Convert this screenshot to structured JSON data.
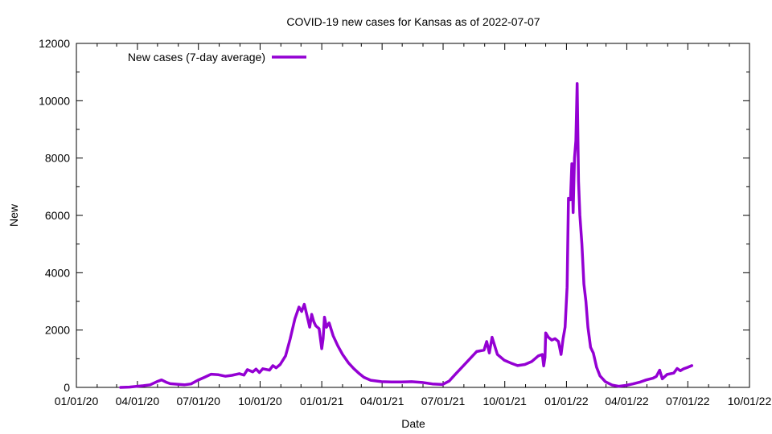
{
  "chart_data": {
    "type": "line",
    "title": "COVID-19 new cases for Kansas as of 2022-07-07",
    "xlabel": "Date",
    "ylabel": "New",
    "x_ticks": [
      "01/01/20",
      "04/01/20",
      "07/01/20",
      "10/01/20",
      "01/01/21",
      "04/01/21",
      "07/01/21",
      "10/01/21",
      "01/01/22",
      "04/01/22",
      "07/01/22",
      "10/01/22"
    ],
    "y_ticks": [
      "0",
      "2000",
      "4000",
      "6000",
      "8000",
      "10000",
      "12000"
    ],
    "ylim": [
      0,
      12000
    ],
    "xlim": [
      "2020-01-01",
      "2022-10-01"
    ],
    "grid": false,
    "legend_position": "top-left",
    "series": [
      {
        "name": "New cases (7-day average)",
        "color": "#9400d3",
        "points": [
          [
            "2020-03-07",
            0
          ],
          [
            "2020-03-20",
            10
          ],
          [
            "2020-04-01",
            40
          ],
          [
            "2020-04-10",
            60
          ],
          [
            "2020-04-20",
            90
          ],
          [
            "2020-04-30",
            200
          ],
          [
            "2020-05-07",
            260
          ],
          [
            "2020-05-14",
            180
          ],
          [
            "2020-05-20",
            130
          ],
          [
            "2020-05-31",
            110
          ],
          [
            "2020-06-10",
            90
          ],
          [
            "2020-06-20",
            120
          ],
          [
            "2020-06-30",
            250
          ],
          [
            "2020-07-10",
            350
          ],
          [
            "2020-07-20",
            460
          ],
          [
            "2020-07-31",
            440
          ],
          [
            "2020-08-10",
            390
          ],
          [
            "2020-08-20",
            420
          ],
          [
            "2020-08-31",
            480
          ],
          [
            "2020-09-07",
            430
          ],
          [
            "2020-09-12",
            620
          ],
          [
            "2020-09-20",
            540
          ],
          [
            "2020-09-25",
            640
          ],
          [
            "2020-09-30",
            520
          ],
          [
            "2020-10-05",
            650
          ],
          [
            "2020-10-15",
            600
          ],
          [
            "2020-10-20",
            760
          ],
          [
            "2020-10-25",
            680
          ],
          [
            "2020-10-31",
            800
          ],
          [
            "2020-11-08",
            1100
          ],
          [
            "2020-11-15",
            1700
          ],
          [
            "2020-11-22",
            2400
          ],
          [
            "2020-11-28",
            2800
          ],
          [
            "2020-12-02",
            2650
          ],
          [
            "2020-12-06",
            2900
          ],
          [
            "2020-12-10",
            2500
          ],
          [
            "2020-12-14",
            2100
          ],
          [
            "2020-12-17",
            2550
          ],
          [
            "2020-12-20",
            2300
          ],
          [
            "2020-12-23",
            2150
          ],
          [
            "2020-12-28",
            2050
          ],
          [
            "2021-01-01",
            1350
          ],
          [
            "2021-01-03",
            1700
          ],
          [
            "2021-01-05",
            2450
          ],
          [
            "2021-01-08",
            2100
          ],
          [
            "2021-01-12",
            2250
          ],
          [
            "2021-01-18",
            1800
          ],
          [
            "2021-01-25",
            1450
          ],
          [
            "2021-02-01",
            1150
          ],
          [
            "2021-02-10",
            850
          ],
          [
            "2021-02-18",
            650
          ],
          [
            "2021-02-25",
            500
          ],
          [
            "2021-03-05",
            350
          ],
          [
            "2021-03-15",
            250
          ],
          [
            "2021-03-31",
            200
          ],
          [
            "2021-04-15",
            190
          ],
          [
            "2021-04-30",
            190
          ],
          [
            "2021-05-15",
            200
          ],
          [
            "2021-05-31",
            170
          ],
          [
            "2021-06-15",
            120
          ],
          [
            "2021-06-30",
            100
          ],
          [
            "2021-07-10",
            220
          ],
          [
            "2021-07-20",
            480
          ],
          [
            "2021-07-31",
            750
          ],
          [
            "2021-08-10",
            1000
          ],
          [
            "2021-08-20",
            1250
          ],
          [
            "2021-08-31",
            1300
          ],
          [
            "2021-09-04",
            1600
          ],
          [
            "2021-09-08",
            1200
          ],
          [
            "2021-09-12",
            1750
          ],
          [
            "2021-09-16",
            1450
          ],
          [
            "2021-09-20",
            1150
          ],
          [
            "2021-09-30",
            950
          ],
          [
            "2021-10-10",
            850
          ],
          [
            "2021-10-20",
            760
          ],
          [
            "2021-10-31",
            800
          ],
          [
            "2021-11-10",
            900
          ],
          [
            "2021-11-20",
            1100
          ],
          [
            "2021-11-26",
            1150
          ],
          [
            "2021-11-28",
            750
          ],
          [
            "2021-11-30",
            1050
          ],
          [
            "2021-12-01",
            1900
          ],
          [
            "2021-12-05",
            1750
          ],
          [
            "2021-12-10",
            1650
          ],
          [
            "2021-12-15",
            1700
          ],
          [
            "2021-12-20",
            1600
          ],
          [
            "2021-12-24",
            1150
          ],
          [
            "2021-12-27",
            1700
          ],
          [
            "2021-12-30",
            2100
          ],
          [
            "2022-01-02",
            3500
          ],
          [
            "2022-01-04",
            6600
          ],
          [
            "2022-01-07",
            6550
          ],
          [
            "2022-01-09",
            7800
          ],
          [
            "2022-01-11",
            6100
          ],
          [
            "2022-01-13",
            8000
          ],
          [
            "2022-01-15",
            8600
          ],
          [
            "2022-01-17",
            10600
          ],
          [
            "2022-01-19",
            7200
          ],
          [
            "2022-01-21",
            6000
          ],
          [
            "2022-01-24",
            5000
          ],
          [
            "2022-01-27",
            3600
          ],
          [
            "2022-01-30",
            3000
          ],
          [
            "2022-02-02",
            2100
          ],
          [
            "2022-02-06",
            1400
          ],
          [
            "2022-02-10",
            1200
          ],
          [
            "2022-02-15",
            700
          ],
          [
            "2022-02-20",
            400
          ],
          [
            "2022-02-28",
            200
          ],
          [
            "2022-03-10",
            80
          ],
          [
            "2022-03-20",
            40
          ],
          [
            "2022-03-31",
            70
          ],
          [
            "2022-04-10",
            120
          ],
          [
            "2022-04-20",
            180
          ],
          [
            "2022-04-30",
            260
          ],
          [
            "2022-05-10",
            320
          ],
          [
            "2022-05-15",
            380
          ],
          [
            "2022-05-20",
            600
          ],
          [
            "2022-05-24",
            300
          ],
          [
            "2022-05-31",
            450
          ],
          [
            "2022-06-10",
            500
          ],
          [
            "2022-06-15",
            660
          ],
          [
            "2022-06-20",
            580
          ],
          [
            "2022-06-25",
            650
          ],
          [
            "2022-07-01",
            700
          ],
          [
            "2022-07-07",
            760
          ]
        ]
      }
    ]
  }
}
